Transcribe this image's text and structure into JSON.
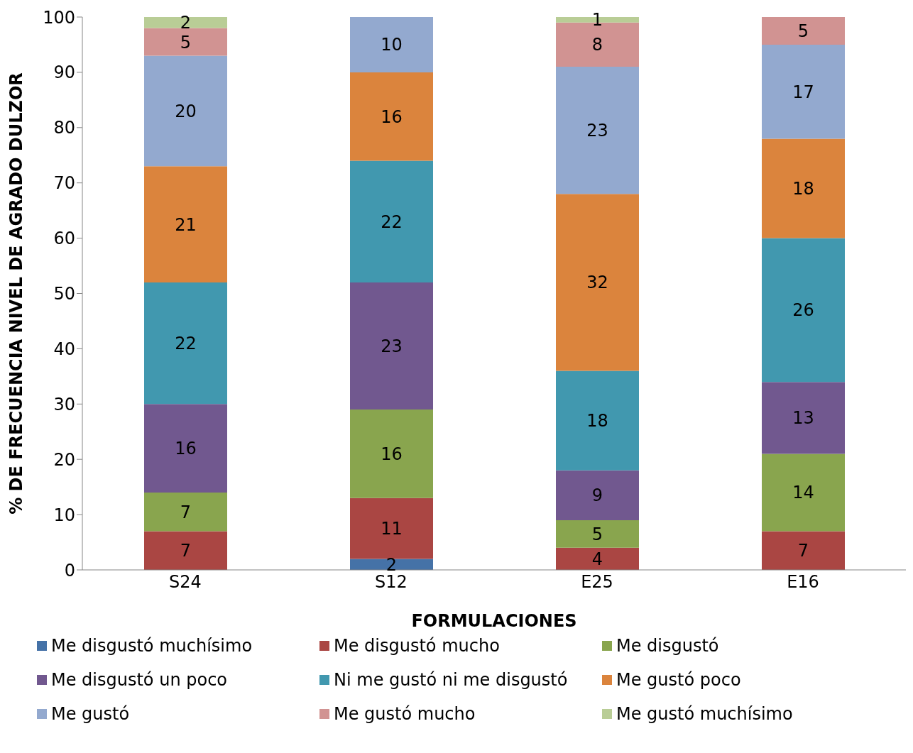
{
  "chart_data": {
    "type": "bar",
    "stacked": true,
    "xlabel": "FORMULACIONES",
    "ylabel": "% DE FRECUENCIA NIVEL DE AGRADO DULZOR",
    "categories": [
      "S24",
      "S12",
      "E25",
      "E16"
    ],
    "ylim": [
      0,
      100
    ],
    "yticks": [
      0,
      10,
      20,
      30,
      40,
      50,
      60,
      70,
      80,
      90,
      100
    ],
    "legend": "bottom",
    "series": [
      {
        "name": "Me disgustó muchísimo",
        "color": "#4572a7",
        "values": [
          0,
          2,
          0,
          0
        ],
        "value_labels": [
          null,
          "2",
          null,
          null
        ]
      },
      {
        "name": "Me disgustó mucho",
        "color": "#aa4643",
        "values": [
          7,
          11,
          4,
          7
        ],
        "value_labels": [
          "7",
          "11",
          "4",
          "7"
        ]
      },
      {
        "name": "Me disgustó",
        "color": "#89a54e",
        "values": [
          7,
          16,
          5,
          14
        ],
        "value_labels": [
          "7",
          "16",
          "5",
          "14"
        ]
      },
      {
        "name": "Me disgustó un poco",
        "color": "#71588f",
        "values": [
          16,
          23,
          9,
          13
        ],
        "value_labels": [
          "16",
          "23",
          "9",
          "13"
        ]
      },
      {
        "name": "Ni me gustó ni me disgustó",
        "color": "#4198af",
        "values": [
          22,
          22,
          18,
          26
        ],
        "value_labels": [
          "22",
          "22",
          "18",
          "26"
        ]
      },
      {
        "name": "Me gustó poco",
        "color": "#db843d",
        "values": [
          21,
          16,
          32,
          18
        ],
        "value_labels": [
          "21",
          "16",
          "32",
          "18"
        ]
      },
      {
        "name": "Me gustó",
        "color": "#93a9cf",
        "values": [
          20,
          10,
          23,
          17
        ],
        "value_labels": [
          "20",
          "10",
          "23",
          "17"
        ]
      },
      {
        "name": "Me gustó mucho",
        "color": "#d19392",
        "values": [
          5,
          0,
          8,
          5
        ],
        "value_labels": [
          "5",
          null,
          "8",
          "5"
        ]
      },
      {
        "name": "Me gustó muchísimo",
        "color": "#b9cd96",
        "values": [
          2,
          0,
          1,
          0
        ],
        "value_labels": [
          "2",
          null,
          "1",
          null
        ]
      }
    ]
  }
}
